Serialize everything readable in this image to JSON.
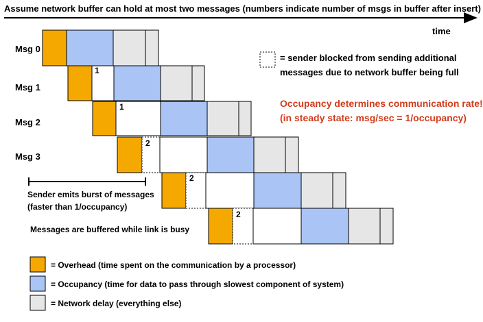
{
  "header": {
    "title": "Assume network buffer can hold at most two messages (numbers indicate number of msgs in buffer after insert)",
    "time_label": "time"
  },
  "colors": {
    "overhead": "#f5a800",
    "occupancy": "#a9c4f5",
    "network_delay": "#e6e6e6",
    "highlight": "#d23b1c"
  },
  "messages": [
    {
      "label": "Msg 0",
      "buffer_count": ""
    },
    {
      "label": "Msg 1",
      "buffer_count": "1"
    },
    {
      "label": "Msg 2",
      "buffer_count": "1"
    },
    {
      "label": "Msg 3",
      "buffer_count": "2"
    },
    {
      "label": "",
      "buffer_count": "2"
    },
    {
      "label": "",
      "buffer_count": "2"
    }
  ],
  "blocked_legend": {
    "line1": "= sender blocked from sending additional",
    "line2": "messages due to network buffer being full"
  },
  "highlight": {
    "line1": "Occupancy determines communication rate!",
    "line2": "(in steady state: msg/sec = 1/occupancy)"
  },
  "annotations": {
    "burst_line1": "Sender emits burst of messages",
    "burst_line2": "(faster than 1/occupancy)",
    "buffered": "Messages are buffered while link is busy"
  },
  "legend": [
    {
      "key": "overhead",
      "label": "= Overhead  (time spent on the communication by a processor)"
    },
    {
      "key": "occupancy",
      "label": "= Occupancy (time for data to pass through slowest component of system)"
    },
    {
      "key": "network_delay",
      "label": "= Network delay (everything else)"
    }
  ]
}
